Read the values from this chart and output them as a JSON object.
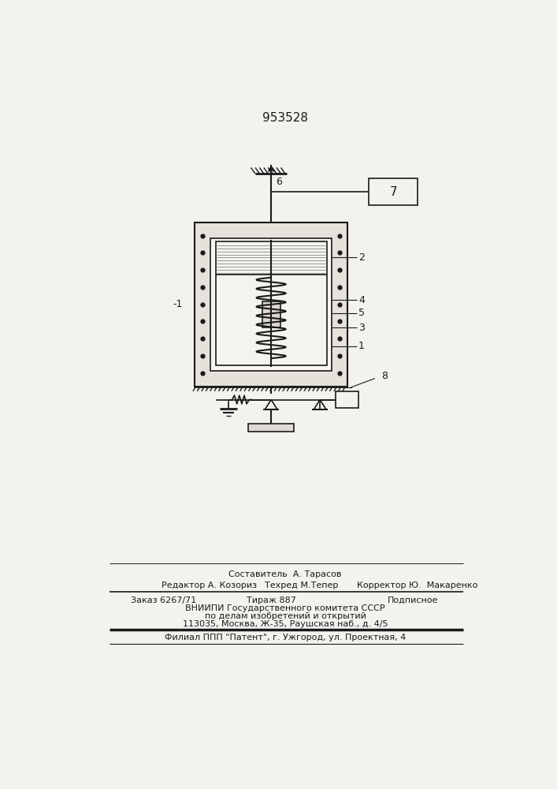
{
  "title": "953528",
  "bg_color": "#f4f2ee",
  "line_color": "#1a1a1a",
  "label_1": "1",
  "label_2": "2",
  "label_3": "3",
  "label_4": "4",
  "label_5": "5",
  "label_6": "6",
  "label_7": "7",
  "label_8": "8",
  "footer_line1": "Составитель  А. Тарасов",
  "footer_line2_left": "Редактор А. Козориз",
  "footer_line2_mid": "Техред М.Тепер",
  "footer_line2_right": "Корректор Ю.  Макаренко",
  "footer_f3a": "Заказ 6267/71",
  "footer_f3b": "Тираж 887",
  "footer_f3c": "Подписное",
  "footer_line4": "ВНИИПИ Государственного комитета СССР",
  "footer_line5": "по делам изобретений и открытий",
  "footer_line6": "113035, Москва, Ж-35, Раушская наб., д. 4/5",
  "footer_line7": "Филиал ППП \"Патент\", г. Ужгород, ул. Проектная, 4"
}
